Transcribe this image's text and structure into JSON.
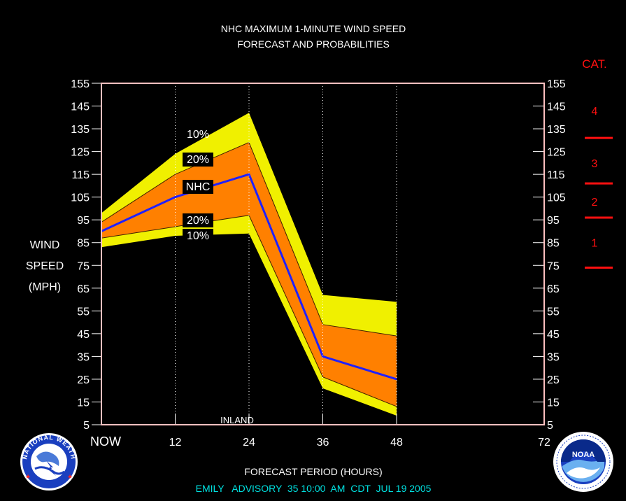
{
  "title_line1": "NHC MAXIMUM 1-MINUTE WIND SPEED",
  "title_line2": "FORECAST AND PROBABILITIES",
  "x_axis_label": "FORECAST PERIOD (HOURS)",
  "y_axis_label": [
    "WIND",
    "SPEED",
    "(MPH)"
  ],
  "category_header": "CAT.",
  "categories": [
    {
      "label": "4"
    },
    {
      "label": "3"
    },
    {
      "label": "2"
    },
    {
      "label": "1"
    }
  ],
  "category_thresholds_mph": [
    74,
    96,
    111,
    131
  ],
  "advisory": {
    "storm": "EMILY",
    "advisory_label": "ADVISORY",
    "advisory_number": "35",
    "time": "10:00",
    "ampm": "AM",
    "tz": "CDT",
    "date": "JUL 19 2005"
  },
  "annotation_inland": "INLAND",
  "band_labels": {
    "upper_10": "10%",
    "upper_20": "20%",
    "nhc": "NHC",
    "lower_20": "20%",
    "lower_10": "10%"
  },
  "logos": {
    "left": "nws-logo",
    "right": "noaa-logo",
    "left_text": "NATIONAL WEATHER SERVICE",
    "right_text": "NOAA"
  },
  "colors": {
    "outer_band": "#f0f000",
    "inner_band": "#ff8000",
    "forecast_line": "#2020ff",
    "frame": "#ffc0c0",
    "category_red": "#ff1010",
    "advisory_text": "#00e0e0",
    "text": "#ffffff"
  },
  "chart_data": {
    "type": "area",
    "xlim": [
      0,
      72
    ],
    "ylim": [
      5,
      155
    ],
    "x_ticks": [
      {
        "value": 0,
        "label": "NOW"
      },
      {
        "value": 12,
        "label": "12"
      },
      {
        "value": 24,
        "label": "24"
      },
      {
        "value": 36,
        "label": "36"
      },
      {
        "value": 48,
        "label": "48"
      },
      {
        "value": 72,
        "label": "72"
      }
    ],
    "y_ticks": [
      5,
      15,
      25,
      35,
      45,
      55,
      65,
      75,
      85,
      95,
      105,
      115,
      125,
      135,
      145,
      155
    ],
    "x": [
      0,
      12,
      24,
      36,
      48
    ],
    "series": [
      {
        "name": "10%",
        "values": [
          98,
          124,
          142,
          62,
          59
        ]
      },
      {
        "name": "20%",
        "values": [
          94,
          115,
          129,
          49,
          44
        ]
      },
      {
        "name": "NHC",
        "values": [
          90,
          105,
          115,
          35,
          25
        ]
      },
      {
        "name": "20%",
        "values": [
          87,
          92,
          97,
          26,
          13
        ]
      },
      {
        "name": "10%",
        "values": [
          83,
          88,
          89,
          21,
          9
        ]
      }
    ]
  }
}
